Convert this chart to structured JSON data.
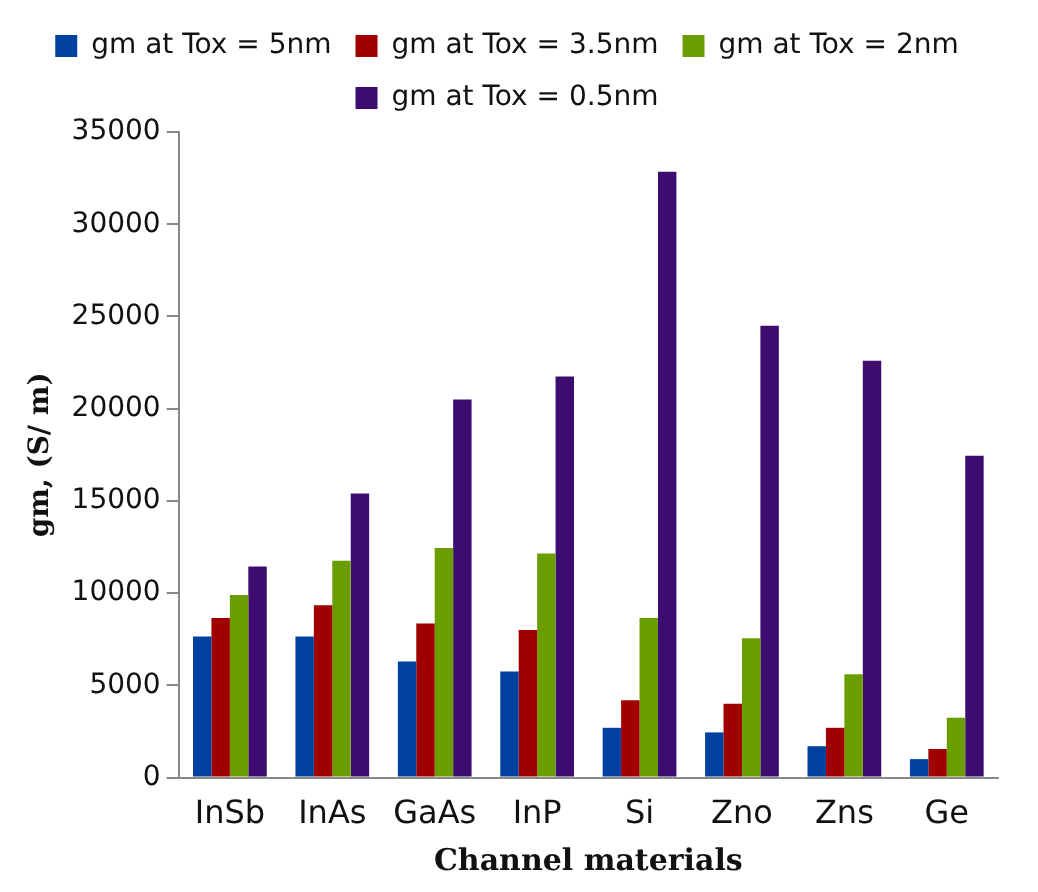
{
  "chart_data": {
    "type": "bar",
    "xlabel": "Channel materials",
    "ylabel": "gm, (S/ m)",
    "categories": [
      "InSb",
      "InAs",
      "GaAs",
      "InP",
      "Si",
      "Zno",
      "Zns",
      "Ge"
    ],
    "series": [
      {
        "name": "gm at Tox = 5nm",
        "color": "#0040a0",
        "values": [
          7650,
          7650,
          6300,
          5750,
          2700,
          2450,
          1700,
          1000
        ]
      },
      {
        "name": "gm at Tox = 3.5nm",
        "color": "#a00000",
        "values": [
          8650,
          9350,
          8350,
          8000,
          4200,
          4000,
          2700,
          1550
        ]
      },
      {
        "name": "gm at Tox = 2nm",
        "color": "#6a9e00",
        "values": [
          9900,
          11750,
          12450,
          12150,
          8650,
          7550,
          5600,
          3250
        ]
      },
      {
        "name": "gm at Tox = 0.5nm",
        "color": "#3c0c70",
        "values": [
          11450,
          15400,
          20500,
          21750,
          32850,
          24500,
          22600,
          17450
        ]
      }
    ],
    "ylim": [
      0,
      35000
    ],
    "yticks": [
      0,
      5000,
      10000,
      15000,
      20000,
      25000,
      30000,
      35000
    ],
    "grid": false,
    "legend": "top"
  }
}
